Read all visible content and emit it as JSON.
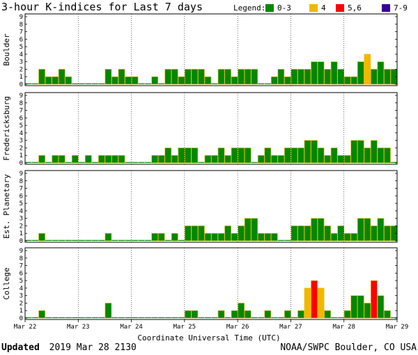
{
  "chart_data": {
    "type": "bar",
    "title": "3-hour K-indices for Last 7 days",
    "legend": {
      "label": "Legend:",
      "placement": "top-right",
      "entries": [
        {
          "text": "0-3",
          "color": "#008800"
        },
        {
          "text": "4",
          "color": "#f0b800"
        },
        {
          "text": "5,6",
          "color": "#ff0000"
        },
        {
          "text": "7-9",
          "color": "#3a0094"
        }
      ]
    },
    "ylim": [
      0,
      9
    ],
    "yticks": [
      "0",
      "1",
      "2",
      "3",
      "4",
      "5",
      "6",
      "7",
      "8",
      "9"
    ],
    "xlabel": "Coordinate Universal Time (UTC)",
    "xtick_labels": [
      "Mar 22",
      "Mar 23",
      "Mar 24",
      "Mar 25",
      "Mar 26",
      "Mar 27",
      "Mar 28",
      "Mar 29"
    ],
    "bars_per_panel": 56,
    "panels": [
      {
        "name": "Boulder",
        "values": [
          0,
          0,
          2,
          1,
          1,
          2,
          1,
          0,
          0,
          0,
          0,
          0,
          2,
          1,
          2,
          1,
          1,
          0,
          0,
          1,
          0,
          2,
          2,
          1,
          2,
          2,
          2,
          1,
          0,
          2,
          2,
          1,
          2,
          2,
          2,
          0,
          0,
          1,
          2,
          1,
          2,
          2,
          2,
          3,
          3,
          2,
          3,
          2,
          1,
          1,
          3,
          4,
          2,
          3,
          2,
          2
        ]
      },
      {
        "name": "Fredericksburg",
        "values": [
          0,
          0,
          1,
          0,
          1,
          1,
          0,
          1,
          0,
          1,
          0,
          1,
          1,
          1,
          1,
          0,
          0,
          0,
          0,
          1,
          1,
          2,
          1,
          2,
          2,
          2,
          0,
          1,
          1,
          2,
          1,
          2,
          2,
          2,
          0,
          1,
          2,
          1,
          1,
          2,
          2,
          2,
          3,
          3,
          2,
          1,
          2,
          1,
          1,
          3,
          3,
          2,
          3,
          2,
          2,
          0
        ]
      },
      {
        "name": "Est. Planetary",
        "values": [
          0,
          0,
          1,
          0,
          0,
          0,
          0,
          0,
          0,
          0,
          0,
          0,
          1,
          0,
          0,
          0,
          0,
          0,
          0,
          1,
          1,
          0,
          1,
          0,
          2,
          2,
          2,
          1,
          1,
          1,
          2,
          1,
          2,
          3,
          3,
          1,
          1,
          1,
          0,
          0,
          2,
          2,
          2,
          3,
          3,
          2,
          1,
          2,
          1,
          1,
          3,
          3,
          2,
          3,
          2,
          2
        ]
      },
      {
        "name": "College",
        "values": [
          0,
          0,
          1,
          0,
          0,
          0,
          0,
          0,
          0,
          0,
          0,
          0,
          2,
          0,
          0,
          0,
          0,
          0,
          0,
          0,
          0,
          0,
          0,
          0,
          1,
          1,
          0,
          0,
          0,
          1,
          0,
          1,
          2,
          1,
          0,
          0,
          1,
          0,
          0,
          1,
          0,
          1,
          4,
          5,
          4,
          1,
          0,
          0,
          1,
          3,
          3,
          2,
          5,
          3,
          1,
          0
        ]
      }
    ]
  },
  "footer": {
    "updated_label": "Updated",
    "updated_value": "2019 Mar 28 2130",
    "credit": "NOAA/SWPC Boulder, CO USA"
  }
}
